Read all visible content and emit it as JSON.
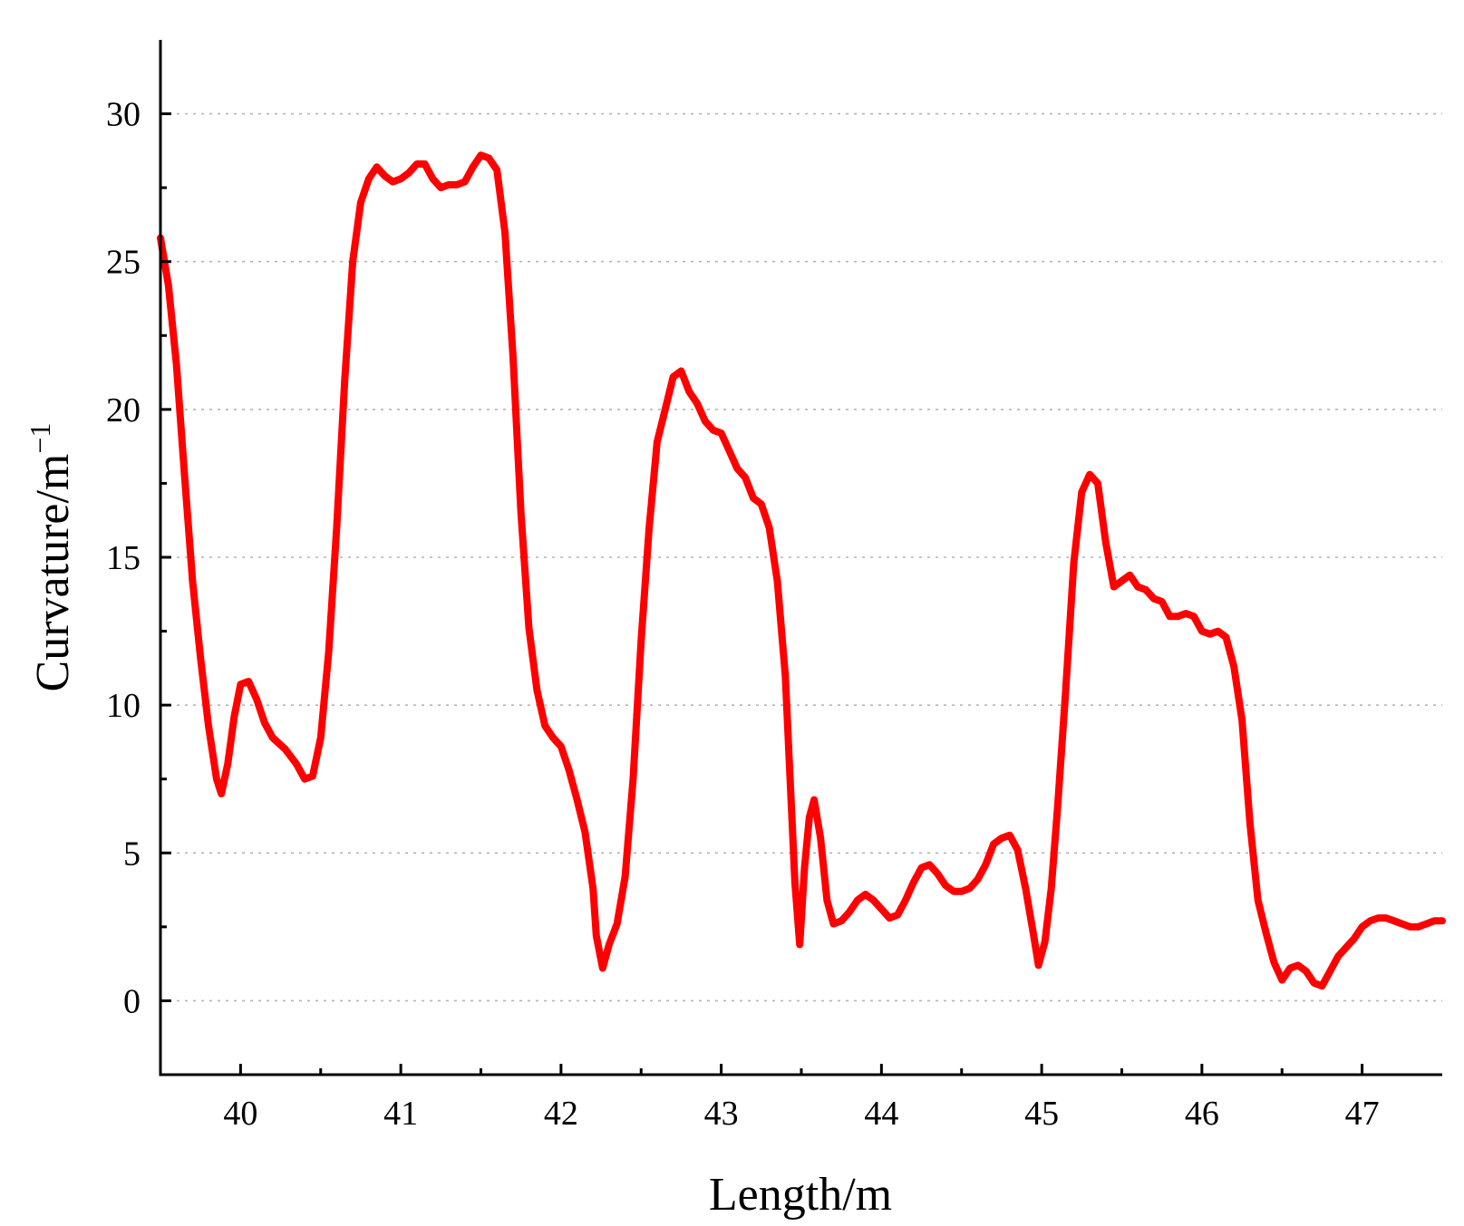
{
  "chart_data": {
    "type": "line",
    "xlabel": "Length/m",
    "ylabel_main": "Curvature/m",
    "ylabel_sup": "−1",
    "xlim": [
      39.5,
      47.5
    ],
    "ylim": [
      -2.5,
      32.5
    ],
    "x_ticks": [
      40,
      41,
      42,
      43,
      44,
      45,
      46,
      47
    ],
    "y_ticks": [
      0,
      5,
      10,
      15,
      20,
      25,
      30
    ],
    "grid": "horizontal-dotted",
    "line_color": "#ff0000",
    "series": [
      {
        "points": [
          [
            39.5,
            25.8
          ],
          [
            39.55,
            24.2
          ],
          [
            39.6,
            21.5
          ],
          [
            39.65,
            17.8
          ],
          [
            39.7,
            14.2
          ],
          [
            39.75,
            11.6
          ],
          [
            39.8,
            9.3
          ],
          [
            39.85,
            7.5
          ],
          [
            39.88,
            7.0
          ],
          [
            39.92,
            8.0
          ],
          [
            39.96,
            9.6
          ],
          [
            40.0,
            10.7
          ],
          [
            40.05,
            10.8
          ],
          [
            40.1,
            10.2
          ],
          [
            40.15,
            9.4
          ],
          [
            40.2,
            8.9
          ],
          [
            40.28,
            8.5
          ],
          [
            40.35,
            8.0
          ],
          [
            40.4,
            7.5
          ],
          [
            40.45,
            7.6
          ],
          [
            40.5,
            8.9
          ],
          [
            40.55,
            11.8
          ],
          [
            40.6,
            16.0
          ],
          [
            40.65,
            21.0
          ],
          [
            40.7,
            25.0
          ],
          [
            40.75,
            27.0
          ],
          [
            40.8,
            27.8
          ],
          [
            40.85,
            28.2
          ],
          [
            40.9,
            27.9
          ],
          [
            40.95,
            27.7
          ],
          [
            41.0,
            27.8
          ],
          [
            41.05,
            28.0
          ],
          [
            41.1,
            28.3
          ],
          [
            41.15,
            28.3
          ],
          [
            41.2,
            27.8
          ],
          [
            41.25,
            27.5
          ],
          [
            41.3,
            27.6
          ],
          [
            41.35,
            27.6
          ],
          [
            41.4,
            27.7
          ],
          [
            41.45,
            28.2
          ],
          [
            41.5,
            28.6
          ],
          [
            41.55,
            28.5
          ],
          [
            41.6,
            28.1
          ],
          [
            41.65,
            26.0
          ],
          [
            41.7,
            21.8
          ],
          [
            41.75,
            16.5
          ],
          [
            41.8,
            12.6
          ],
          [
            41.85,
            10.5
          ],
          [
            41.9,
            9.3
          ],
          [
            41.95,
            8.9
          ],
          [
            42.0,
            8.6
          ],
          [
            42.05,
            7.8
          ],
          [
            42.1,
            6.8
          ],
          [
            42.15,
            5.7
          ],
          [
            42.2,
            3.8
          ],
          [
            42.22,
            2.2
          ],
          [
            42.26,
            1.1
          ],
          [
            42.3,
            1.9
          ],
          [
            42.35,
            2.6
          ],
          [
            42.4,
            4.2
          ],
          [
            42.45,
            7.5
          ],
          [
            42.5,
            12.2
          ],
          [
            42.55,
            16.0
          ],
          [
            42.6,
            18.9
          ],
          [
            42.65,
            20.0
          ],
          [
            42.7,
            21.1
          ],
          [
            42.75,
            21.3
          ],
          [
            42.8,
            20.6
          ],
          [
            42.85,
            20.2
          ],
          [
            42.9,
            19.6
          ],
          [
            42.95,
            19.3
          ],
          [
            43.0,
            19.2
          ],
          [
            43.05,
            18.6
          ],
          [
            43.1,
            18.0
          ],
          [
            43.15,
            17.7
          ],
          [
            43.2,
            17.0
          ],
          [
            43.25,
            16.8
          ],
          [
            43.3,
            16.0
          ],
          [
            43.35,
            14.2
          ],
          [
            43.4,
            11.0
          ],
          [
            43.43,
            7.5
          ],
          [
            43.46,
            4.0
          ],
          [
            43.49,
            1.9
          ],
          [
            43.52,
            4.5
          ],
          [
            43.55,
            6.2
          ],
          [
            43.58,
            6.8
          ],
          [
            43.62,
            5.5
          ],
          [
            43.66,
            3.4
          ],
          [
            43.7,
            2.6
          ],
          [
            43.75,
            2.7
          ],
          [
            43.8,
            3.0
          ],
          [
            43.85,
            3.4
          ],
          [
            43.9,
            3.6
          ],
          [
            43.95,
            3.4
          ],
          [
            44.0,
            3.1
          ],
          [
            44.05,
            2.8
          ],
          [
            44.1,
            2.9
          ],
          [
            44.15,
            3.4
          ],
          [
            44.2,
            4.0
          ],
          [
            44.25,
            4.5
          ],
          [
            44.3,
            4.6
          ],
          [
            44.35,
            4.3
          ],
          [
            44.4,
            3.9
          ],
          [
            44.45,
            3.7
          ],
          [
            44.5,
            3.7
          ],
          [
            44.55,
            3.8
          ],
          [
            44.6,
            4.1
          ],
          [
            44.65,
            4.6
          ],
          [
            44.7,
            5.3
          ],
          [
            44.75,
            5.5
          ],
          [
            44.8,
            5.6
          ],
          [
            44.85,
            5.1
          ],
          [
            44.9,
            3.8
          ],
          [
            44.95,
            2.2
          ],
          [
            44.98,
            1.2
          ],
          [
            45.02,
            2.0
          ],
          [
            45.06,
            3.8
          ],
          [
            45.1,
            6.6
          ],
          [
            45.15,
            10.5
          ],
          [
            45.2,
            14.8
          ],
          [
            45.25,
            17.2
          ],
          [
            45.3,
            17.8
          ],
          [
            45.35,
            17.5
          ],
          [
            45.4,
            15.5
          ],
          [
            45.45,
            14.0
          ],
          [
            45.5,
            14.2
          ],
          [
            45.55,
            14.4
          ],
          [
            45.6,
            14.0
          ],
          [
            45.65,
            13.9
          ],
          [
            45.7,
            13.6
          ],
          [
            45.75,
            13.5
          ],
          [
            45.8,
            13.0
          ],
          [
            45.85,
            13.0
          ],
          [
            45.9,
            13.1
          ],
          [
            45.95,
            13.0
          ],
          [
            46.0,
            12.5
          ],
          [
            46.05,
            12.4
          ],
          [
            46.1,
            12.5
          ],
          [
            46.15,
            12.3
          ],
          [
            46.2,
            11.3
          ],
          [
            46.25,
            9.5
          ],
          [
            46.3,
            6.0
          ],
          [
            46.35,
            3.4
          ],
          [
            46.4,
            2.3
          ],
          [
            46.45,
            1.3
          ],
          [
            46.5,
            0.7
          ],
          [
            46.55,
            1.1
          ],
          [
            46.6,
            1.2
          ],
          [
            46.65,
            1.0
          ],
          [
            46.7,
            0.6
          ],
          [
            46.75,
            0.5
          ],
          [
            46.8,
            1.0
          ],
          [
            46.85,
            1.5
          ],
          [
            46.9,
            1.8
          ],
          [
            46.95,
            2.1
          ],
          [
            47.0,
            2.5
          ],
          [
            47.05,
            2.7
          ],
          [
            47.1,
            2.8
          ],
          [
            47.15,
            2.8
          ],
          [
            47.2,
            2.7
          ],
          [
            47.25,
            2.6
          ],
          [
            47.3,
            2.5
          ],
          [
            47.35,
            2.5
          ],
          [
            47.4,
            2.6
          ],
          [
            47.45,
            2.7
          ],
          [
            47.5,
            2.7
          ]
        ]
      }
    ]
  }
}
